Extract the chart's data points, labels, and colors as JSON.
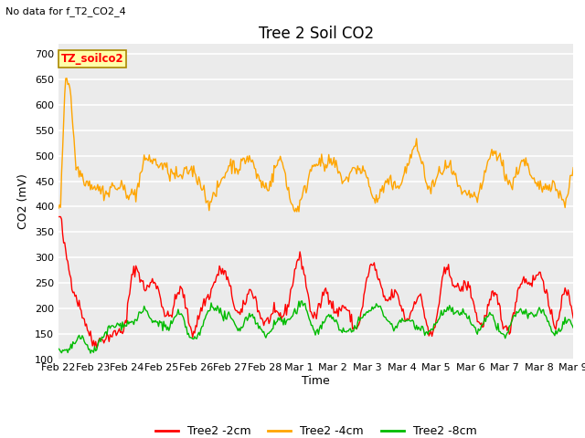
{
  "title": "Tree 2 Soil CO2",
  "subtitle": "No data for f_T2_CO2_4",
  "ylabel": "CO2 (mV)",
  "xlabel": "Time",
  "legend_label": "TZ_soilco2",
  "ylim": [
    100,
    720
  ],
  "yticks": [
    100,
    150,
    200,
    250,
    300,
    350,
    400,
    450,
    500,
    550,
    600,
    650,
    700
  ],
  "xtick_labels": [
    "Feb 22",
    "Feb 23",
    "Feb 24",
    "Feb 25",
    "Feb 26",
    "Feb 27",
    "Feb 28",
    "Mar 1",
    "Mar 2",
    "Mar 3",
    "Mar 4",
    "Mar 5",
    "Mar 6",
    "Mar 7",
    "Mar 8",
    "Mar 9"
  ],
  "series_labels": [
    "Tree2 -2cm",
    "Tree2 -4cm",
    "Tree2 -8cm"
  ],
  "series_colors": [
    "#ff0000",
    "#ffa500",
    "#00bb00"
  ],
  "background_color": "#ffffff",
  "plot_bg_color": "#ebebeb",
  "grid_color": "#ffffff",
  "title_fontsize": 12,
  "axis_label_fontsize": 9,
  "tick_fontsize": 8,
  "legend_fontsize": 9
}
